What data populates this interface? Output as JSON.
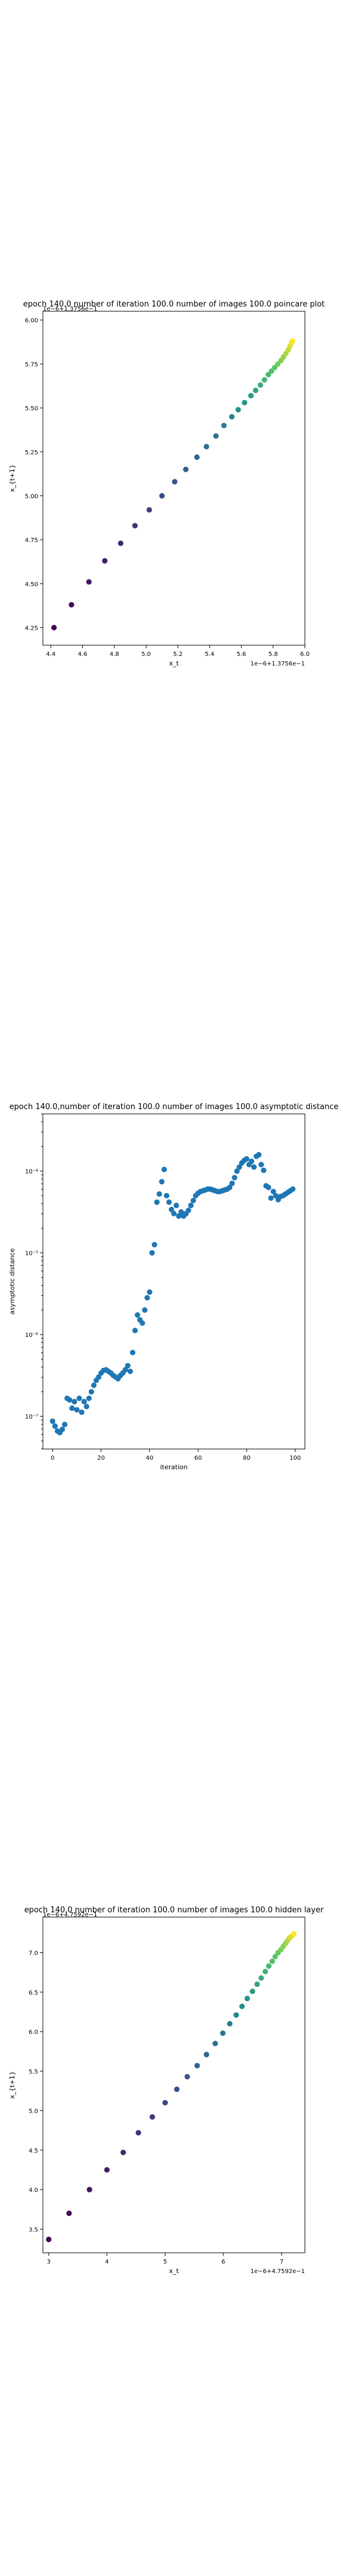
{
  "chart_data": [
    {
      "type": "scatter",
      "title": "epoch 140.0 number of iteration 100.0 number of images 100.0 poincare plot",
      "xlabel": "x_t",
      "ylabel": "x_{t+1}",
      "offset_label": "1e−6+1.3756e−1",
      "top_left_label": "1e−6+1.3756e−1",
      "xlim": [
        4.35,
        6.0
      ],
      "ylim": [
        4.15,
        6.05
      ],
      "xticks": [
        "4.4",
        "4.6",
        "4.8",
        "5.0",
        "5.2",
        "5.4",
        "5.6",
        "5.8",
        "6.0"
      ],
      "yticks": [
        "4.25",
        "4.50",
        "4.75",
        "5.00",
        "5.25",
        "5.50",
        "5.75",
        "6.00"
      ],
      "colormap": "viridis",
      "x": [
        4.42,
        4.53,
        4.64,
        4.74,
        4.84,
        4.93,
        5.02,
        5.1,
        5.18,
        5.25,
        5.32,
        5.38,
        5.44,
        5.49,
        5.54,
        5.58,
        5.62,
        5.66,
        5.69,
        5.72,
        5.745,
        5.77,
        5.79,
        5.81,
        5.83,
        5.85,
        5.865,
        5.88,
        5.895,
        5.905,
        5.915,
        5.922
      ],
      "y": [
        4.25,
        4.38,
        4.51,
        4.63,
        4.73,
        4.83,
        4.92,
        5.0,
        5.08,
        5.15,
        5.22,
        5.28,
        5.34,
        5.4,
        5.45,
        5.49,
        5.53,
        5.57,
        5.6,
        5.63,
        5.66,
        5.69,
        5.71,
        5.73,
        5.75,
        5.77,
        5.79,
        5.81,
        5.83,
        5.85,
        5.87,
        5.88
      ]
    },
    {
      "type": "scatter",
      "title": "epoch 140.0,number of iteration 100.0  number of images 100.0 asymptotic distance",
      "xlabel": "iteration",
      "ylabel": "asymptotic distance",
      "yscale": "log",
      "xlim": [
        -4,
        104
      ],
      "ylim_log10": [
        -7.4,
        -3.3
      ],
      "xticks": [
        "0",
        "20",
        "40",
        "60",
        "80",
        "100"
      ],
      "yticks": [
        "10⁻⁷",
        "10⁻⁶",
        "10⁻⁵",
        "10⁻⁴"
      ],
      "color": "#1f77b4",
      "x": [
        0,
        1,
        2,
        3,
        4,
        5,
        6,
        7,
        8,
        9,
        10,
        11,
        12,
        13,
        14,
        15,
        16,
        17,
        18,
        19,
        20,
        21,
        22,
        23,
        24,
        25,
        26,
        27,
        28,
        29,
        30,
        31,
        32,
        33,
        34,
        35,
        36,
        37,
        38,
        39,
        40,
        41,
        42,
        43,
        44,
        45,
        46,
        47,
        48,
        49,
        50,
        51,
        52,
        53,
        54,
        55,
        56,
        57,
        58,
        59,
        60,
        61,
        62,
        63,
        64,
        65,
        66,
        67,
        68,
        69,
        70,
        71,
        72,
        73,
        74,
        75,
        76,
        77,
        78,
        79,
        80,
        81,
        82,
        83,
        84,
        85,
        86,
        87,
        88,
        89,
        90,
        91,
        92,
        93,
        94,
        95,
        96,
        97,
        98,
        99
      ],
      "logy": [
        -7.06,
        -7.12,
        -7.18,
        -7.2,
        -7.16,
        -7.1,
        -6.78,
        -6.8,
        -6.9,
        -6.82,
        -6.92,
        -6.78,
        -6.95,
        -6.82,
        -6.88,
        -6.78,
        -6.7,
        -6.62,
        -6.56,
        -6.52,
        -6.47,
        -6.44,
        -6.43,
        -6.45,
        -6.47,
        -6.5,
        -6.52,
        -6.54,
        -6.5,
        -6.47,
        -6.43,
        -6.38,
        -6.45,
        -6.22,
        -5.95,
        -5.76,
        -5.82,
        -5.86,
        -5.7,
        -5.55,
        -5.48,
        -5.0,
        -4.9,
        -4.38,
        -4.28,
        -4.13,
        -3.98,
        -4.3,
        -4.38,
        -4.47,
        -4.52,
        -4.42,
        -4.55,
        -4.5,
        -4.55,
        -4.52,
        -4.48,
        -4.42,
        -4.36,
        -4.3,
        -4.27,
        -4.25,
        -4.24,
        -4.23,
        -4.22,
        -4.22,
        -4.23,
        -4.24,
        -4.25,
        -4.25,
        -4.24,
        -4.23,
        -4.22,
        -4.2,
        -4.15,
        -4.08,
        -4.0,
        -3.95,
        -3.9,
        -3.87,
        -3.85,
        -3.92,
        -3.88,
        -3.95,
        -3.82,
        -3.8,
        -3.92,
        -3.99,
        -4.18,
        -4.2,
        -4.33,
        -4.25,
        -4.3,
        -4.35,
        -4.31,
        -4.3,
        -4.28,
        -4.26,
        -4.24,
        -4.22
      ]
    },
    {
      "type": "scatter",
      "title": "epoch 140.0 number of iteration 100.0  number of images 100.0 hidden layer",
      "xlabel": "x_t",
      "ylabel": "x_{t+1}",
      "offset_label": "1e−6+4.7592e−1",
      "top_left_label": "1e−6+4.7592e−1",
      "xlim": [
        2.9,
        7.4
      ],
      "ylim": [
        3.2,
        7.45
      ],
      "xticks": [
        "3",
        "4",
        "5",
        "6",
        "7"
      ],
      "yticks": [
        "3.5",
        "4.0",
        "4.5",
        "5.0",
        "5.5",
        "6.0",
        "6.5",
        "7.0"
      ],
      "colormap": "viridis",
      "x": [
        3.0,
        3.35,
        3.7,
        4.0,
        4.28,
        4.54,
        4.78,
        5.0,
        5.2,
        5.38,
        5.55,
        5.71,
        5.86,
        5.99,
        6.11,
        6.22,
        6.32,
        6.41,
        6.5,
        6.58,
        6.65,
        6.72,
        6.78,
        6.84,
        6.89,
        6.94,
        6.99,
        7.03,
        7.07,
        7.1,
        7.13,
        7.16,
        7.19,
        7.21
      ],
      "y": [
        3.37,
        3.7,
        4.0,
        4.25,
        4.47,
        4.72,
        4.92,
        5.1,
        5.27,
        5.43,
        5.57,
        5.71,
        5.85,
        5.98,
        6.1,
        6.21,
        6.32,
        6.42,
        6.51,
        6.6,
        6.68,
        6.76,
        6.83,
        6.89,
        6.95,
        7.0,
        7.04,
        7.08,
        7.12,
        7.15,
        7.18,
        7.2,
        7.22,
        7.24
      ]
    }
  ]
}
